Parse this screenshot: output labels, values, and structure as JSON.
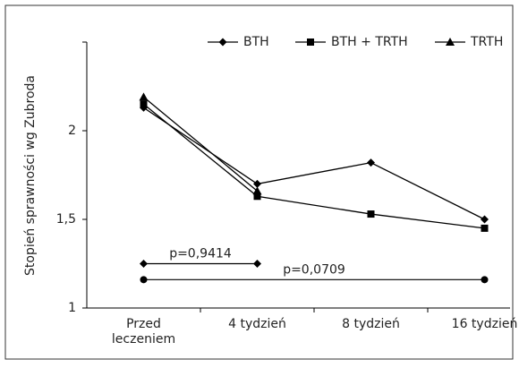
{
  "chart_data": {
    "type": "line",
    "y_label": "Stopień sprawności wg Zubroda",
    "categories": [
      "Przed\nleczeniem",
      "4 tydzień",
      "8 tydzień",
      "16 tydzień"
    ],
    "series": [
      {
        "name": "BTH",
        "color": "#000000",
        "marker": "diamond",
        "values": [
          2.13,
          1.7,
          1.82,
          1.5
        ]
      },
      {
        "name": "BTH + TRTH",
        "color": "#000000",
        "marker": "square",
        "values": [
          2.15,
          1.63,
          1.53,
          1.45
        ]
      },
      {
        "name": "TRTH",
        "color": "#000000",
        "marker": "triangle",
        "values": [
          2.19,
          1.66,
          null,
          null
        ]
      }
    ],
    "annotations": [
      {
        "label": "p=0,9414",
        "value": 1.25,
        "start": "Przed\nleczeniem",
        "end": "4 tydzień",
        "marker": "diamond"
      },
      {
        "label": "p=0,0709",
        "value": 1.16,
        "start": "Przed\nleczeniem",
        "end": "16 tydzień",
        "marker": "circle"
      }
    ],
    "ylim": [
      1,
      2.5
    ],
    "yticks": [
      1,
      {
        "value": 1.5,
        "label": "1,5"
      },
      2,
      2.5
    ],
    "legend": "top"
  }
}
